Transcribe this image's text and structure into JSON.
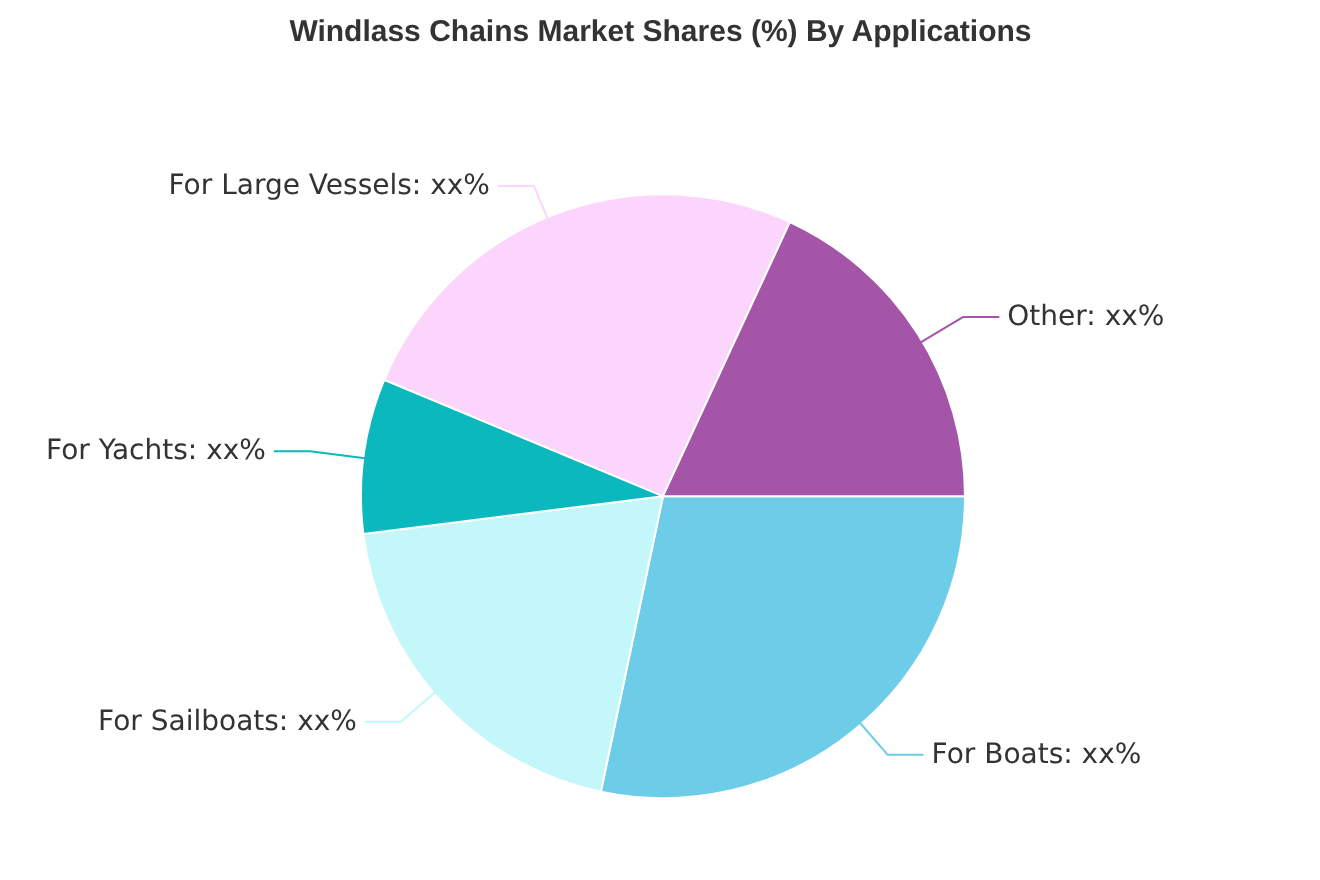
{
  "chart_data": {
    "type": "pie",
    "title": "Windlass Chains Market Shares (%) By Applications",
    "categories": [
      "For Boats",
      "For Sailboats",
      "For Yachts",
      "For Large Vessels",
      "Other"
    ],
    "values": [
      28.3,
      19.7,
      8.3,
      25.6,
      18.1
    ],
    "colors": [
      "#6dcde8",
      "#c3f7f9",
      "#0bb8bd",
      "#fbd5fb",
      "#a455a8"
    ],
    "value_labels": [
      "xx%",
      "xx%",
      "xx%",
      "xx%",
      "xx%"
    ]
  }
}
